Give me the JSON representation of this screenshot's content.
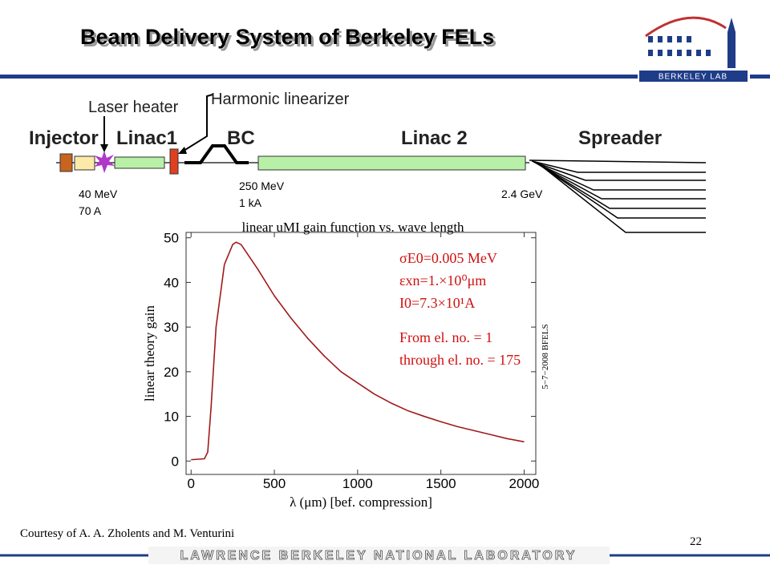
{
  "header": {
    "title": "Beam Delivery System of Berkeley FELs",
    "logo": "Berkeley Lab"
  },
  "diagram": {
    "laser_heater": "Laser heater",
    "harmonic_linearizer": "Harmonic linearizer",
    "injector": "Injector",
    "linac1": "Linac1",
    "bc": "BC",
    "linac2": "Linac 2",
    "spreader": "Spreader",
    "energy_1": [
      "40 MeV",
      "70 A"
    ],
    "energy_2": [
      "250 MeV",
      "1 kA"
    ],
    "energy_3": "2.4 GeV"
  },
  "chart_data": {
    "type": "line",
    "title": "linear uMI gain function vs. wave length",
    "x_label": "λ (μm) [bef. compression]",
    "y_label": "linear theory gain",
    "x": [
      0,
      80,
      100,
      120,
      150,
      200,
      250,
      270,
      300,
      400,
      500,
      600,
      700,
      800,
      900,
      1000,
      1100,
      1200,
      1300,
      1400,
      1500,
      1600,
      1700,
      1800,
      1900,
      2000
    ],
    "values": [
      0.3,
      0.5,
      2,
      12,
      30,
      44,
      48.5,
      49,
      48.5,
      43,
      37,
      32,
      27.5,
      23.5,
      20,
      17.5,
      15,
      13,
      11.3,
      10,
      8.8,
      7.7,
      6.8,
      5.9,
      5,
      4.3
    ],
    "color": "#a01a1a",
    "xlim": [
      -30,
      2070
    ],
    "ylim": [
      -3,
      51.2
    ],
    "xticks": [
      0,
      500,
      1000,
      1500,
      2000
    ],
    "yticks": [
      0,
      10,
      20,
      30,
      40,
      50
    ],
    "annotations": [
      "σE0=0.005 MeV",
      "εxn=1.×10⁰μm",
      "I0=7.3×10¹A",
      "From el. no. = 1",
      "through el. no. = 175"
    ],
    "side_note": "5−7−2008 BFELS"
  },
  "footer": {
    "credit": "Courtesy of A. A. Zholents and M. Venturini",
    "page": "22",
    "banner": "Lawrence Berkeley National Laboratory"
  }
}
